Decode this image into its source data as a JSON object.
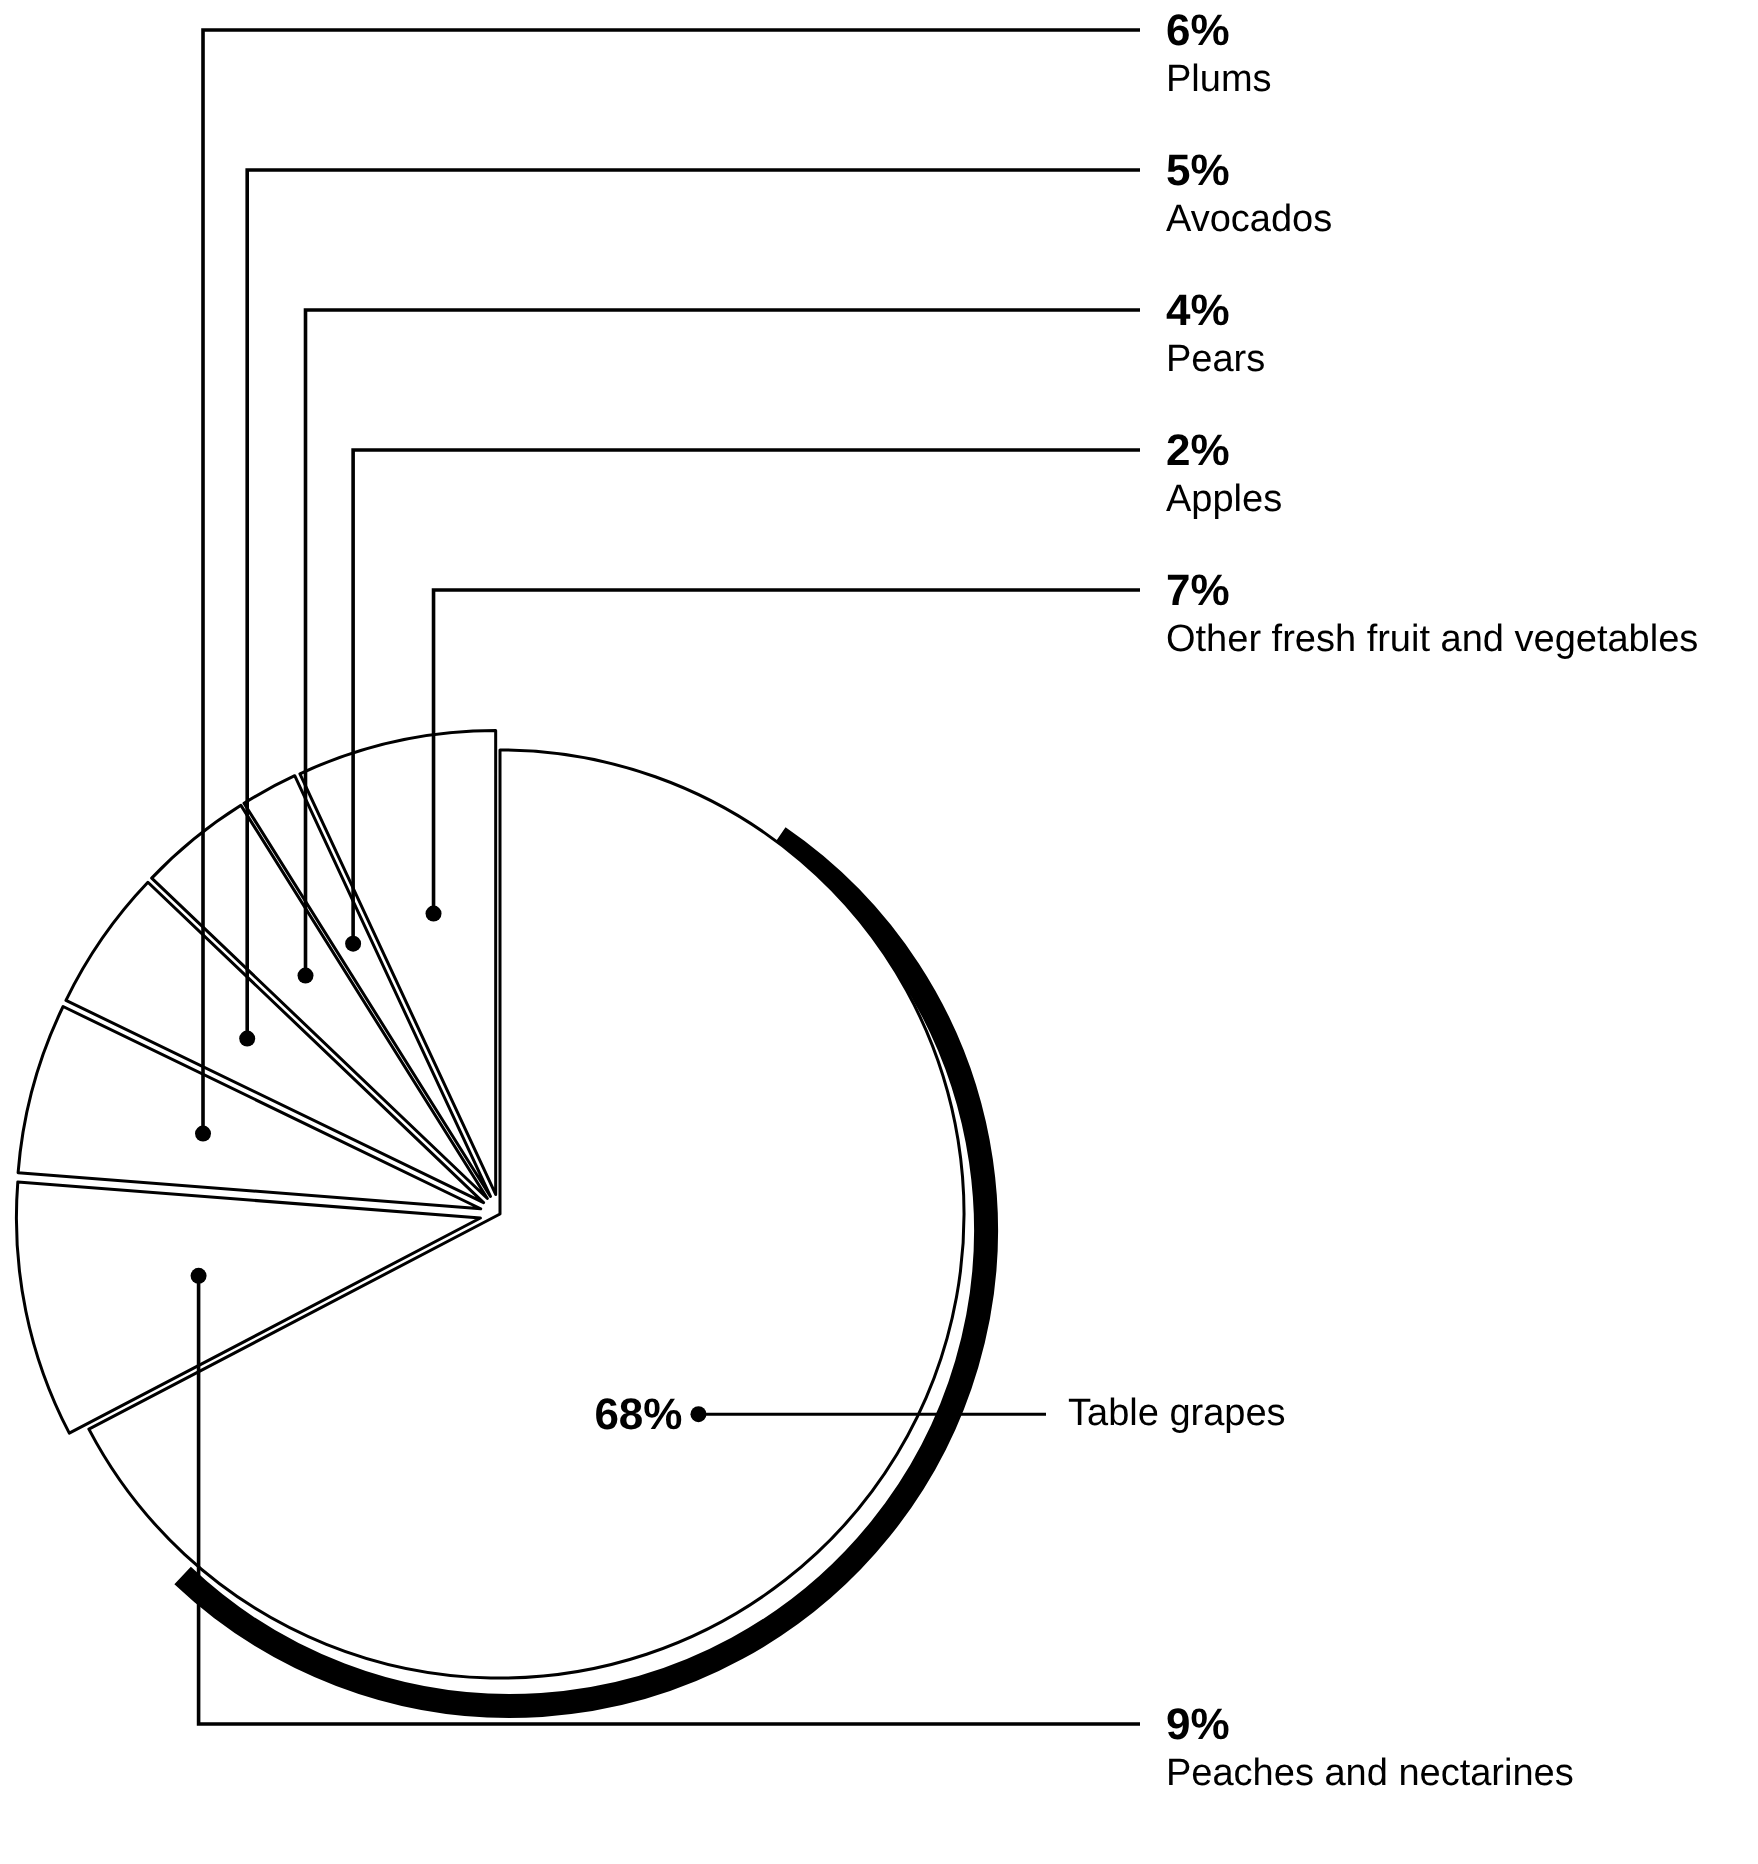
{
  "chart_data": {
    "type": "pie",
    "categories": [
      "Table grapes",
      "Peaches and nectarines",
      "Plums",
      "Avocados",
      "Pears",
      "Apples",
      "Other fresh fruit and vegetables"
    ],
    "values": [
      68,
      9,
      6,
      5,
      4,
      2,
      7
    ],
    "value_labels": [
      "68%",
      "9%",
      "6%",
      "5%",
      "4%",
      "2%",
      "7%"
    ],
    "colors": [
      "#ffffff",
      "#ffffff",
      "#ffffff",
      "#ffffff",
      "#ffffff",
      "#ffffff",
      "#ffffff"
    ]
  }
}
